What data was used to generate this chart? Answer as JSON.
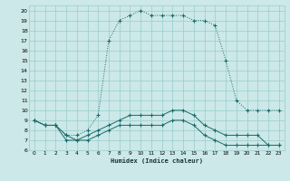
{
  "xlabel": "Humidex (Indice chaleur)",
  "bg_color": "#cce8e8",
  "grid_color": "#99cccc",
  "line_color": "#1a6b6b",
  "xlim": [
    -0.5,
    23.5
  ],
  "ylim": [
    6,
    20.5
  ],
  "yticks": [
    6,
    7,
    8,
    9,
    10,
    11,
    12,
    13,
    14,
    15,
    16,
    17,
    18,
    19,
    20
  ],
  "xticks": [
    0,
    1,
    2,
    3,
    4,
    5,
    6,
    7,
    8,
    9,
    10,
    11,
    12,
    13,
    14,
    15,
    16,
    17,
    18,
    19,
    20,
    21,
    22,
    23
  ],
  "series1_x": [
    0,
    1,
    2,
    3,
    4,
    5,
    6,
    7,
    8,
    9,
    10,
    11,
    12,
    13,
    14,
    15,
    16,
    17,
    18,
    19,
    20,
    21,
    22,
    23
  ],
  "series1_y": [
    9.0,
    8.5,
    8.5,
    7.5,
    7.5,
    8.0,
    9.5,
    17.0,
    19.0,
    19.5,
    20.0,
    19.5,
    19.5,
    19.5,
    19.5,
    19.0,
    19.0,
    18.5,
    15.0,
    11.0,
    10.0,
    10.0,
    10.0,
    10.0
  ],
  "series2_x": [
    0,
    1,
    2,
    3,
    4,
    5,
    6,
    7,
    8,
    9,
    10,
    11,
    12,
    13,
    14,
    15,
    16,
    17,
    18,
    19,
    20,
    21,
    22,
    23
  ],
  "series2_y": [
    9.0,
    8.5,
    8.5,
    7.5,
    7.0,
    7.5,
    8.0,
    8.5,
    9.0,
    9.5,
    9.5,
    9.5,
    9.5,
    10.0,
    10.0,
    9.5,
    8.5,
    8.0,
    7.5,
    7.5,
    7.5,
    7.5,
    6.5,
    6.5
  ],
  "series3_x": [
    0,
    1,
    2,
    3,
    4,
    5,
    6,
    7,
    8,
    9,
    10,
    11,
    12,
    13,
    14,
    15,
    16,
    17,
    18,
    19,
    20,
    21,
    22,
    23
  ],
  "series3_y": [
    9.0,
    8.5,
    8.5,
    7.0,
    7.0,
    7.0,
    7.5,
    8.0,
    8.5,
    8.5,
    8.5,
    8.5,
    8.5,
    9.0,
    9.0,
    8.5,
    7.5,
    7.0,
    6.5,
    6.5,
    6.5,
    6.5,
    6.5,
    6.5
  ]
}
